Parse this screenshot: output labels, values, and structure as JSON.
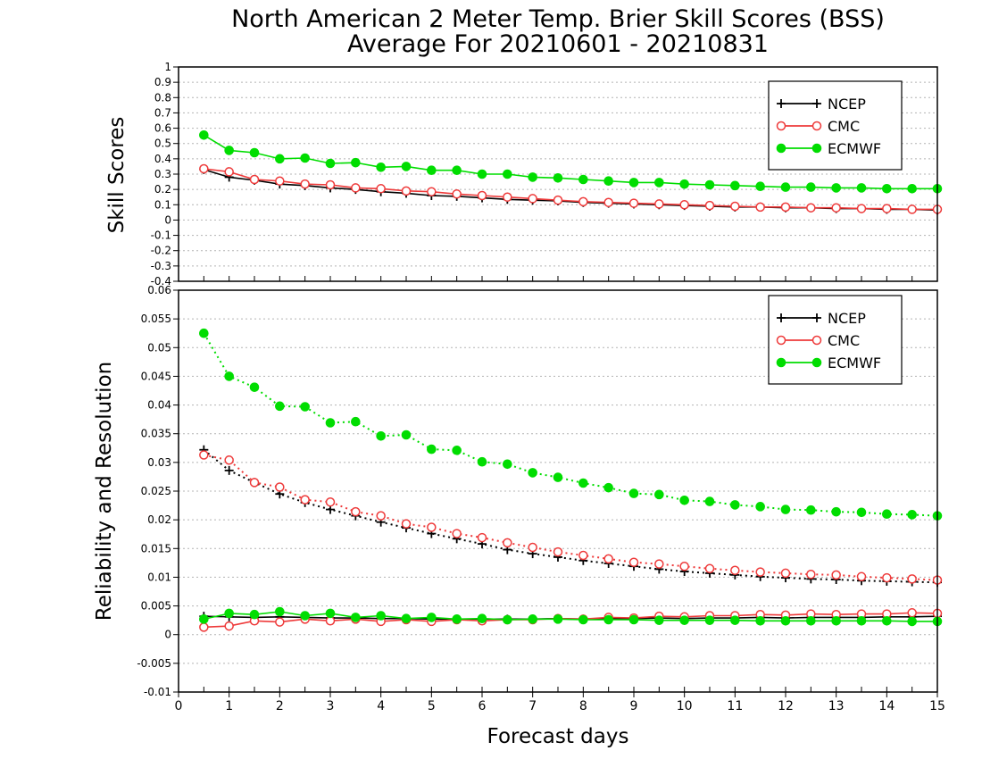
{
  "chart_data": [
    {
      "type": "line",
      "title": "North American 2 Meter Temp. Brier Skill Scores (BSS)",
      "subtitle": "Average For 20210601 - 20210831",
      "xlabel": "",
      "ylabel": "Skill Scores",
      "xlim": [
        0,
        15
      ],
      "ylim": [
        -0.4,
        1
      ],
      "yticks": [
        "-0.4",
        "-0.3",
        "-0.2",
        "-0.1",
        "0",
        "0.1",
        "0.2",
        "0.3",
        "0.4",
        "0.5",
        "0.6",
        "0.7",
        "0.8",
        "0.9",
        "1"
      ],
      "grid": true,
      "legend_position": "top-right",
      "x": [
        0.5,
        1,
        1.5,
        2,
        2.5,
        3,
        3.5,
        4,
        4.5,
        5,
        5.5,
        6,
        6.5,
        7,
        7.5,
        8,
        8.5,
        9,
        9.5,
        10,
        10.5,
        11,
        11.5,
        12,
        12.5,
        13,
        13.5,
        14,
        14.5,
        15
      ],
      "series": [
        {
          "name": "NCEP",
          "color": "#000000",
          "marker": "plus",
          "line": "solid",
          "values": [
            0.33,
            0.28,
            0.26,
            0.235,
            0.225,
            0.21,
            0.2,
            0.185,
            0.175,
            0.16,
            0.155,
            0.145,
            0.135,
            0.13,
            0.125,
            0.115,
            0.11,
            0.105,
            0.1,
            0.095,
            0.09,
            0.085,
            0.085,
            0.08,
            0.08,
            0.075,
            0.075,
            0.07,
            0.07,
            0.065
          ]
        },
        {
          "name": "CMC",
          "color": "#ee3a3a",
          "marker": "open-circle",
          "line": "solid",
          "values": [
            0.335,
            0.315,
            0.265,
            0.255,
            0.235,
            0.23,
            0.21,
            0.205,
            0.19,
            0.185,
            0.17,
            0.16,
            0.15,
            0.14,
            0.13,
            0.12,
            0.115,
            0.11,
            0.105,
            0.1,
            0.095,
            0.09,
            0.085,
            0.085,
            0.08,
            0.08,
            0.075,
            0.075,
            0.07,
            0.07
          ]
        },
        {
          "name": "ECMWF",
          "color": "#00dd00",
          "marker": "filled-circle",
          "line": "solid",
          "values": [
            0.555,
            0.455,
            0.44,
            0.4,
            0.405,
            0.37,
            0.375,
            0.345,
            0.35,
            0.325,
            0.325,
            0.3,
            0.3,
            0.28,
            0.275,
            0.265,
            0.255,
            0.245,
            0.245,
            0.235,
            0.23,
            0.225,
            0.22,
            0.215,
            0.215,
            0.21,
            0.21,
            0.205,
            0.205,
            0.205
          ]
        }
      ]
    },
    {
      "type": "line",
      "xlabel": "Forecast days",
      "ylabel": "Reliability and Resolution",
      "xlim": [
        0,
        15
      ],
      "ylim": [
        -0.01,
        0.06
      ],
      "xticks": [
        "0",
        "1",
        "2",
        "3",
        "4",
        "5",
        "6",
        "7",
        "8",
        "9",
        "10",
        "11",
        "12",
        "13",
        "14",
        "15"
      ],
      "yticks": [
        "-0.01",
        "-0.005",
        "0",
        "0.005",
        "0.01",
        "0.015",
        "0.02",
        "0.025",
        "0.03",
        "0.035",
        "0.04",
        "0.045",
        "0.05",
        "0.055",
        "0.06"
      ],
      "grid": true,
      "legend_position": "top-right",
      "x": [
        0.5,
        1,
        1.5,
        2,
        2.5,
        3,
        3.5,
        4,
        4.5,
        5,
        5.5,
        6,
        6.5,
        7,
        7.5,
        8,
        8.5,
        9,
        9.5,
        10,
        10.5,
        11,
        11.5,
        12,
        12.5,
        13,
        13.5,
        14,
        14.5,
        15
      ],
      "series": [
        {
          "name": "NCEP",
          "group": "resolution",
          "color": "#000000",
          "marker": "plus",
          "line": "dotted",
          "values": [
            0.0322,
            0.0286,
            0.0265,
            0.0245,
            0.023,
            0.0218,
            0.0207,
            0.0196,
            0.0186,
            0.0176,
            0.0167,
            0.0158,
            0.0148,
            0.0141,
            0.0135,
            0.0129,
            0.0124,
            0.0119,
            0.0114,
            0.011,
            0.0107,
            0.0104,
            0.0101,
            0.0099,
            0.0097,
            0.0096,
            0.0094,
            0.0093,
            0.0092,
            0.0091
          ]
        },
        {
          "name": "CMC",
          "group": "resolution",
          "color": "#ee3a3a",
          "marker": "open-circle",
          "line": "dotted",
          "values": [
            0.0313,
            0.0304,
            0.0265,
            0.0257,
            0.0235,
            0.0231,
            0.0214,
            0.0207,
            0.0193,
            0.0187,
            0.0176,
            0.0169,
            0.016,
            0.0152,
            0.0144,
            0.0138,
            0.0132,
            0.0126,
            0.0123,
            0.0119,
            0.0115,
            0.0112,
            0.0109,
            0.0107,
            0.0105,
            0.0104,
            0.0101,
            0.0099,
            0.0097,
            0.0095
          ]
        },
        {
          "name": "ECMWF",
          "group": "resolution",
          "color": "#00dd00",
          "marker": "filled-circle",
          "line": "dotted",
          "values": [
            0.0525,
            0.045,
            0.0431,
            0.0398,
            0.0397,
            0.0369,
            0.0371,
            0.0346,
            0.0348,
            0.0323,
            0.0321,
            0.0301,
            0.0297,
            0.0282,
            0.0274,
            0.0264,
            0.0256,
            0.0246,
            0.0244,
            0.0234,
            0.0232,
            0.0226,
            0.0223,
            0.0218,
            0.0217,
            0.0214,
            0.0213,
            0.021,
            0.0209,
            0.0207
          ]
        },
        {
          "name": "NCEP",
          "group": "reliability",
          "color": "#000000",
          "marker": "plus",
          "line": "solid",
          "values": [
            0.0032,
            0.0031,
            0.003,
            0.0031,
            0.003,
            0.0029,
            0.0029,
            0.0028,
            0.0028,
            0.0027,
            0.0027,
            0.0027,
            0.0027,
            0.0027,
            0.0028,
            0.0027,
            0.0028,
            0.0028,
            0.0029,
            0.0028,
            0.0029,
            0.0029,
            0.003,
            0.0029,
            0.003,
            0.003,
            0.003,
            0.0031,
            0.0031,
            0.0032
          ]
        },
        {
          "name": "CMC",
          "group": "reliability",
          "color": "#ee3a3a",
          "marker": "open-circle",
          "line": "solid",
          "values": [
            0.0013,
            0.0015,
            0.0024,
            0.0022,
            0.0027,
            0.0024,
            0.0027,
            0.0023,
            0.0026,
            0.0023,
            0.0026,
            0.0024,
            0.0026,
            0.0026,
            0.0028,
            0.0027,
            0.003,
            0.0029,
            0.0032,
            0.0031,
            0.0033,
            0.0033,
            0.0035,
            0.0034,
            0.0036,
            0.0035,
            0.0036,
            0.0036,
            0.0038,
            0.0037
          ]
        },
        {
          "name": "ECMWF",
          "group": "reliability",
          "color": "#00dd00",
          "marker": "filled-circle",
          "line": "solid",
          "values": [
            0.0027,
            0.0037,
            0.0035,
            0.004,
            0.0033,
            0.0037,
            0.003,
            0.0033,
            0.0028,
            0.003,
            0.0027,
            0.0028,
            0.0026,
            0.0027,
            0.0027,
            0.0026,
            0.0026,
            0.0026,
            0.0025,
            0.0025,
            0.0025,
            0.0025,
            0.0024,
            0.0024,
            0.0024,
            0.0024,
            0.0024,
            0.0024,
            0.0023,
            0.0023
          ]
        }
      ]
    }
  ]
}
